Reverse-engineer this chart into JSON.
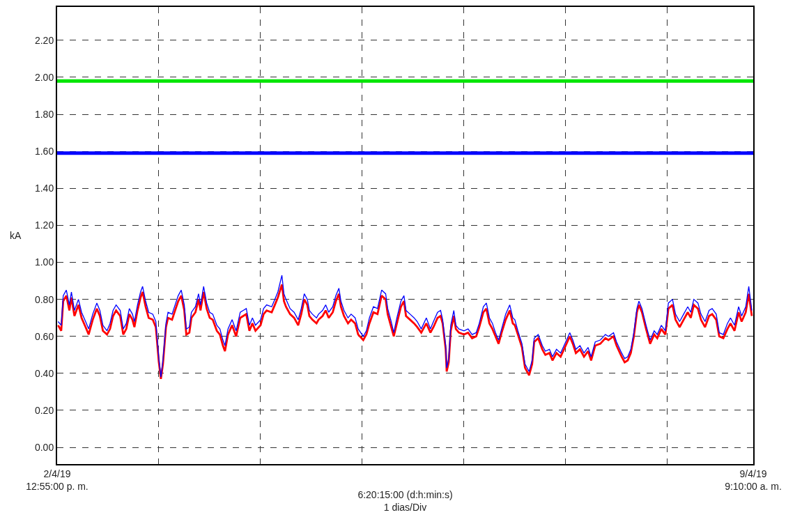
{
  "chart_data": {
    "type": "line",
    "xlabel": "6:20:15:00 (d:h:min:s)\n1 dias/Div",
    "ylabel": "kA",
    "xlim": [
      "--04-02T12:55",
      "--04-09T09:10"
    ],
    "xticks": [
      {
        "value": "--04-02T12:55",
        "label": "2/4/19\n12:55:00 p. m."
      },
      {
        "value": "--04-03T12:55",
        "label": null
      },
      {
        "value": "--04-04T12:55",
        "label": null
      },
      {
        "value": "--04-05T12:55",
        "label": null
      },
      {
        "value": "--04-06T12:55",
        "label": null
      },
      {
        "value": "--04-07T12:55",
        "label": null
      },
      {
        "value": "--04-08T12:55",
        "label": null
      },
      {
        "value": "--04-09T09:10",
        "label": "9/4/19\n9:10:00 a. m."
      }
    ],
    "ylim": [
      -0.09,
      2.38
    ],
    "yticks": [
      {
        "value": 0,
        "label": "0.00"
      },
      {
        "value": 0.2,
        "label": "0.20"
      },
      {
        "value": 0.4,
        "label": "0.40"
      },
      {
        "value": 0.6,
        "label": "0.60"
      },
      {
        "value": 0.8,
        "label": "0.80"
      },
      {
        "value": 1.0,
        "label": "1.00"
      },
      {
        "value": 1.2,
        "label": "1.20"
      },
      {
        "value": 1.4,
        "label": "1.40"
      },
      {
        "value": 1.6,
        "label": "1.60"
      },
      {
        "value": 1.8,
        "label": "1.80"
      },
      {
        "value": 2.0,
        "label": "2.00"
      },
      {
        "value": 2.2,
        "label": "2.20"
      }
    ],
    "grid": true,
    "line_style": "solid",
    "marker": "none",
    "ref_lines": [
      {
        "axis": "y",
        "value": 1.98,
        "label": null,
        "color": "#00e600"
      },
      {
        "axis": "y",
        "value": 1.59,
        "label": null,
        "color": "#0000ff"
      }
    ],
    "x": [
      "--04-02T13:09",
      "--04-02T13:53",
      "--04-02T14:21",
      "--04-02T15:05",
      "--04-02T15:48",
      "--04-02T16:17",
      "--04-02T17:00",
      "--04-02T17:57",
      "--04-02T18:41",
      "--04-02T19:38",
      "--04-02T20:21",
      "--04-02T21:19",
      "--04-02T22:17",
      "--04-02T23:00",
      "--04-02T23:43",
      "--04-03T00:41",
      "--04-03T01:24",
      "--04-03T02:07",
      "--04-03T02:50",
      "--04-03T03:48",
      "--04-03T04:31",
      "--04-03T05:14",
      "--04-03T05:57",
      "--04-03T06:41",
      "--04-03T07:09",
      "--04-03T07:53",
      "--04-03T08:36",
      "--04-03T09:05",
      "--04-03T09:48",
      "--04-03T10:31",
      "--04-03T11:29",
      "--04-03T12:12",
      "--04-03T12:55",
      "--04-03T13:24",
      "--04-03T13:53",
      "--04-03T14:36",
      "--04-03T15:05",
      "--04-03T16:02",
      "--04-03T16:45",
      "--04-03T17:29",
      "--04-03T18:12",
      "--04-03T18:55",
      "--04-03T19:24",
      "--04-03T20:07",
      "--04-03T20:36",
      "--04-03T21:33",
      "--04-03T22:17",
      "--04-03T22:45",
      "--04-03T23:29",
      "--04-04T00:12",
      "--04-04T00:55",
      "--04-04T01:38",
      "--04-04T02:36",
      "--04-04T03:19",
      "--04-04T04:02",
      "--04-04T04:31",
      "--04-04T05:14",
      "--04-04T06:12",
      "--04-04T07:09",
      "--04-04T08:07",
      "--04-04T08:50",
      "--04-04T09:33",
      "--04-04T10:17",
      "--04-04T11:00",
      "--04-04T11:43",
      "--04-04T12:55",
      "--04-04T13:38",
      "--04-04T14:21",
      "--04-04T15:33",
      "--04-04T16:17",
      "--04-04T17:00",
      "--04-04T17:57",
      "--04-04T18:26",
      "--04-04T18:55",
      "--04-04T19:53",
      "--04-04T20:50",
      "--04-04T21:48",
      "--04-04T22:31",
      "--04-04T23:14",
      "--04-04T23:57",
      "--04-05T00:26",
      "--04-05T01:09",
      "--04-05T02:07",
      "--04-05T02:36",
      "--04-05T03:33",
      "--04-05T04:17",
      "--04-05T05:00",
      "--04-05T05:57",
      "--04-05T06:41",
      "--04-05T07:24",
      "--04-05T07:53",
      "--04-05T08:36",
      "--04-05T09:33",
      "--04-05T10:17",
      "--04-05T11:14",
      "--04-05T11:57",
      "--04-05T13:09",
      "--04-05T13:53",
      "--04-05T14:36",
      "--04-05T15:33",
      "--04-05T16:31",
      "--04-05T17:29",
      "--04-05T18:26",
      "--04-05T18:55",
      "--04-05T19:38",
      "--04-05T20:21",
      "--04-05T21:05",
      "--04-05T22:02",
      "--04-05T22:45",
      "--04-05T23:14",
      "--04-06T00:12",
      "--04-06T01:09",
      "--04-06T01:53",
      "--04-06T02:50",
      "--04-06T04:02",
      "--04-06T05:00",
      "--04-06T05:43",
      "--04-06T06:41",
      "--04-06T07:24",
      "--04-06T07:53",
      "--04-06T08:36",
      "--04-06T08:50",
      "--04-06T09:19",
      "--04-06T09:48",
      "--04-06T10:31",
      "--04-06T11:00",
      "--04-06T11:43",
      "--04-06T12:55",
      "--04-06T13:53",
      "--04-06T14:50",
      "--04-06T15:48",
      "--04-06T16:31",
      "--04-06T17:29",
      "--04-06T18:12",
      "--04-06T18:55",
      "--04-06T19:38",
      "--04-06T20:21",
      "--04-06T21:05",
      "--04-06T21:48",
      "--04-06T22:45",
      "--04-06T23:43",
      "--04-07T00:26",
      "--04-07T00:55",
      "--04-07T01:38",
      "--04-07T02:36",
      "--04-07T03:19",
      "--04-07T04:17",
      "--04-07T05:00",
      "--04-07T05:29",
      "--04-07T06:26",
      "--04-07T07:24",
      "--04-07T08:07",
      "--04-07T09:05",
      "--04-07T09:48",
      "--04-07T10:45",
      "--04-07T11:43",
      "--04-07T12:55",
      "--04-07T13:53",
      "--04-07T14:36",
      "--04-07T15:19",
      "--04-07T16:17",
      "--04-07T17:14",
      "--04-07T18:12",
      "--04-07T18:55",
      "--04-07T19:53",
      "--04-07T21:05",
      "--04-07T22:17",
      "--04-07T23:00",
      "--04-08T00:12",
      "--04-08T00:55",
      "--04-08T02:07",
      "--04-08T02:50",
      "--04-08T03:33",
      "--04-08T04:17",
      "--04-08T05:00",
      "--04-08T05:43",
      "--04-08T06:12",
      "--04-08T06:55",
      "--04-08T07:53",
      "--04-08T08:50",
      "--04-08T09:48",
      "--04-08T10:31",
      "--04-08T11:29",
      "--04-08T12:26",
      "--04-08T13:09",
      "--04-08T14:07",
      "--04-08T14:50",
      "--04-08T15:48",
      "--04-08T16:45",
      "--04-08T17:43",
      "--04-08T18:26",
      "--04-08T19:09",
      "--04-08T20:07",
      "--04-08T20:50",
      "--04-08T21:48",
      "--04-08T22:45",
      "--04-08T23:29",
      "--04-09T00:26",
      "--04-09T01:09",
      "--04-09T02:07",
      "--04-09T03:05",
      "--04-09T03:48",
      "--04-09T04:45",
      "--04-09T05:43",
      "--04-09T06:26",
      "--04-09T07:24",
      "--04-09T08:07",
      "--04-09T08:50"
    ],
    "series": [
      {
        "color": "#ff0000",
        "values": [
          0.66,
          0.63,
          0.79,
          0.82,
          0.74,
          0.81,
          0.71,
          0.77,
          0.7,
          0.65,
          0.61,
          0.69,
          0.75,
          0.71,
          0.63,
          0.61,
          0.64,
          0.71,
          0.74,
          0.71,
          0.61,
          0.64,
          0.72,
          0.69,
          0.65,
          0.74,
          0.81,
          0.84,
          0.76,
          0.7,
          0.69,
          0.65,
          0.46,
          0.37,
          0.45,
          0.65,
          0.7,
          0.69,
          0.74,
          0.79,
          0.82,
          0.74,
          0.61,
          0.62,
          0.7,
          0.73,
          0.8,
          0.74,
          0.84,
          0.75,
          0.7,
          0.69,
          0.63,
          0.61,
          0.55,
          0.52,
          0.61,
          0.66,
          0.6,
          0.7,
          0.71,
          0.72,
          0.63,
          0.67,
          0.63,
          0.66,
          0.72,
          0.74,
          0.73,
          0.77,
          0.81,
          0.88,
          0.79,
          0.76,
          0.72,
          0.7,
          0.66,
          0.72,
          0.8,
          0.77,
          0.71,
          0.69,
          0.67,
          0.69,
          0.71,
          0.74,
          0.7,
          0.73,
          0.79,
          0.83,
          0.76,
          0.71,
          0.67,
          0.69,
          0.67,
          0.61,
          0.58,
          0.61,
          0.67,
          0.73,
          0.72,
          0.82,
          0.8,
          0.72,
          0.66,
          0.6,
          0.67,
          0.76,
          0.79,
          0.71,
          0.69,
          0.67,
          0.65,
          0.62,
          0.67,
          0.62,
          0.65,
          0.7,
          0.71,
          0.67,
          0.53,
          0.41,
          0.46,
          0.63,
          0.71,
          0.64,
          0.62,
          0.61,
          0.62,
          0.59,
          0.6,
          0.65,
          0.73,
          0.75,
          0.67,
          0.64,
          0.6,
          0.56,
          0.62,
          0.69,
          0.74,
          0.67,
          0.66,
          0.61,
          0.54,
          0.43,
          0.39,
          0.45,
          0.57,
          0.59,
          0.53,
          0.5,
          0.51,
          0.47,
          0.51,
          0.49,
          0.55,
          0.6,
          0.56,
          0.51,
          0.53,
          0.49,
          0.52,
          0.47,
          0.55,
          0.56,
          0.59,
          0.58,
          0.6,
          0.55,
          0.49,
          0.46,
          0.47,
          0.51,
          0.6,
          0.73,
          0.77,
          0.73,
          0.64,
          0.56,
          0.61,
          0.59,
          0.64,
          0.61,
          0.75,
          0.77,
          0.69,
          0.65,
          0.69,
          0.73,
          0.7,
          0.77,
          0.75,
          0.69,
          0.65,
          0.71,
          0.72,
          0.69,
          0.6,
          0.59,
          0.64,
          0.67,
          0.63,
          0.73,
          0.68,
          0.73,
          0.83,
          0.71
        ]
      },
      {
        "color": "#0000ff",
        "values": [
          0.68,
          0.66,
          0.82,
          0.85,
          0.77,
          0.84,
          0.74,
          0.8,
          0.73,
          0.68,
          0.64,
          0.72,
          0.78,
          0.74,
          0.66,
          0.63,
          0.67,
          0.74,
          0.77,
          0.74,
          0.64,
          0.67,
          0.75,
          0.72,
          0.68,
          0.77,
          0.84,
          0.87,
          0.79,
          0.73,
          0.72,
          0.68,
          0.48,
          0.38,
          0.47,
          0.67,
          0.73,
          0.72,
          0.77,
          0.82,
          0.85,
          0.77,
          0.64,
          0.65,
          0.73,
          0.76,
          0.83,
          0.77,
          0.87,
          0.78,
          0.73,
          0.72,
          0.66,
          0.64,
          0.58,
          0.55,
          0.64,
          0.69,
          0.63,
          0.73,
          0.74,
          0.75,
          0.66,
          0.7,
          0.66,
          0.69,
          0.75,
          0.77,
          0.76,
          0.8,
          0.84,
          0.93,
          0.83,
          0.8,
          0.75,
          0.73,
          0.69,
          0.75,
          0.83,
          0.8,
          0.74,
          0.72,
          0.7,
          0.72,
          0.74,
          0.77,
          0.73,
          0.76,
          0.82,
          0.86,
          0.79,
          0.74,
          0.7,
          0.72,
          0.7,
          0.64,
          0.6,
          0.63,
          0.7,
          0.76,
          0.75,
          0.85,
          0.83,
          0.75,
          0.69,
          0.62,
          0.7,
          0.79,
          0.82,
          0.74,
          0.72,
          0.7,
          0.68,
          0.64,
          0.7,
          0.64,
          0.68,
          0.73,
          0.74,
          0.69,
          0.55,
          0.43,
          0.48,
          0.66,
          0.74,
          0.66,
          0.64,
          0.63,
          0.64,
          0.61,
          0.62,
          0.67,
          0.76,
          0.78,
          0.7,
          0.67,
          0.62,
          0.58,
          0.64,
          0.72,
          0.77,
          0.7,
          0.69,
          0.63,
          0.56,
          0.45,
          0.41,
          0.47,
          0.59,
          0.61,
          0.55,
          0.52,
          0.53,
          0.49,
          0.53,
          0.51,
          0.57,
          0.62,
          0.58,
          0.53,
          0.55,
          0.51,
          0.54,
          0.49,
          0.57,
          0.58,
          0.61,
          0.6,
          0.62,
          0.57,
          0.51,
          0.48,
          0.49,
          0.53,
          0.62,
          0.75,
          0.79,
          0.75,
          0.66,
          0.58,
          0.63,
          0.61,
          0.66,
          0.63,
          0.78,
          0.8,
          0.72,
          0.68,
          0.72,
          0.76,
          0.73,
          0.8,
          0.78,
          0.72,
          0.68,
          0.74,
          0.75,
          0.72,
          0.62,
          0.61,
          0.67,
          0.7,
          0.66,
          0.76,
          0.71,
          0.76,
          0.87,
          0.74
        ]
      }
    ]
  }
}
